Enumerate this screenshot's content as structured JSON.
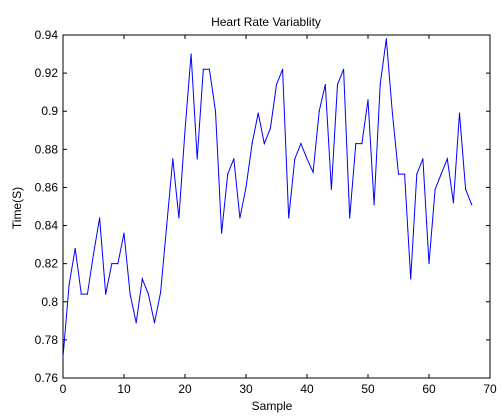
{
  "chart_data": {
    "type": "line",
    "title": "Heart Rate Variablity",
    "xlabel": "Sample",
    "ylabel": "Time(S)",
    "xlim": [
      0,
      70
    ],
    "ylim": [
      0.76,
      0.94
    ],
    "xticks": [
      0,
      10,
      20,
      30,
      40,
      50,
      60,
      70
    ],
    "yticks": [
      0.76,
      0.78,
      0.8,
      0.82,
      0.84,
      0.86,
      0.88,
      0.9,
      0.92,
      0.94
    ],
    "grid": false,
    "legend": "none",
    "series": [
      {
        "color": "#0000ff",
        "x": [
          0,
          1,
          2,
          3,
          4,
          5,
          6,
          7,
          8,
          9,
          10,
          11,
          12,
          13,
          14,
          15,
          16,
          17,
          18,
          19,
          20,
          21,
          22,
          23,
          24,
          25,
          26,
          27,
          28,
          29,
          30,
          31,
          32,
          33,
          34,
          35,
          36,
          37,
          38,
          39,
          40,
          41,
          42,
          43,
          44,
          45,
          46,
          47,
          48,
          49,
          50,
          51,
          52,
          53,
          54,
          55,
          56,
          57,
          58,
          59,
          60,
          61,
          62,
          63,
          64,
          65,
          66,
          67
        ],
        "values": [
          0.771,
          0.809,
          0.828,
          0.804,
          0.804,
          0.825,
          0.844,
          0.804,
          0.82,
          0.82,
          0.836,
          0.804,
          0.789,
          0.812,
          0.804,
          0.789,
          0.805,
          0.84,
          0.875,
          0.844,
          0.89,
          0.93,
          0.875,
          0.922,
          0.922,
          0.9,
          0.836,
          0.867,
          0.875,
          0.844,
          0.86,
          0.883,
          0.899,
          0.883,
          0.891,
          0.914,
          0.922,
          0.844,
          0.875,
          0.883,
          0.875,
          0.868,
          0.9,
          0.914,
          0.859,
          0.914,
          0.922,
          0.844,
          0.883,
          0.883,
          0.906,
          0.851,
          0.914,
          0.938,
          0.899,
          0.867,
          0.867,
          0.812,
          0.867,
          0.875,
          0.82,
          0.859,
          0.867,
          0.875,
          0.852,
          0.899,
          0.859,
          0.851
        ]
      }
    ]
  }
}
